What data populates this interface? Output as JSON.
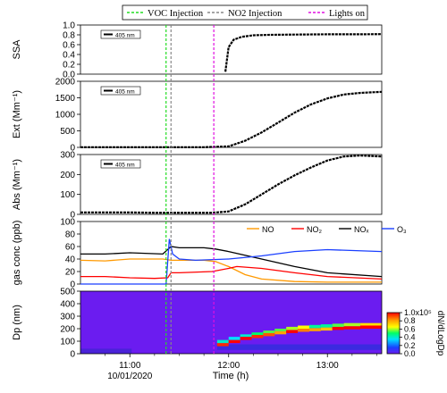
{
  "legend": {
    "entries": [
      {
        "label": "VOC Injection",
        "color": "#22dd22"
      },
      {
        "label": "NO2 Injection",
        "color": "#888888"
      },
      {
        "label": "Lights on",
        "color": "#e010e0"
      }
    ]
  },
  "x_axis": {
    "label": "Time (h)",
    "ticks": [
      "11:00",
      "12:00",
      "13:00"
    ],
    "date_label": "10/01/2020"
  },
  "chart_data": [
    {
      "type": "line",
      "ylabel": "SSA",
      "ylim": [
        0,
        1.0
      ],
      "y_ticks": [
        "0.0",
        "0.2",
        "0.4",
        "0.6",
        "0.8",
        "1.0"
      ],
      "legend_box": "405 nm",
      "series": [
        {
          "name": "405 nm",
          "color": "#000000",
          "x": [
            "11:58",
            "12:00",
            "12:03",
            "12:08",
            "12:15",
            "12:25",
            "12:40",
            "13:00",
            "13:20",
            "13:33"
          ],
          "y": [
            0.05,
            0.55,
            0.7,
            0.76,
            0.79,
            0.8,
            0.805,
            0.81,
            0.81,
            0.815
          ]
        }
      ]
    },
    {
      "type": "line",
      "ylabel": "Ext (Mm⁻¹)",
      "ylim": [
        0,
        2000
      ],
      "y_ticks": [
        "0",
        "500",
        "1000",
        "1500",
        "2000"
      ],
      "legend_box": "405 nm",
      "series": [
        {
          "name": "405 nm",
          "color": "#000000",
          "x": [
            "10:30",
            "11:00",
            "11:15",
            "11:45",
            "12:00",
            "12:10",
            "12:20",
            "12:30",
            "12:40",
            "12:50",
            "13:00",
            "13:10",
            "13:20",
            "13:33"
          ],
          "y": [
            5,
            5,
            5,
            5,
            30,
            200,
            450,
            750,
            1050,
            1300,
            1480,
            1600,
            1650,
            1680
          ]
        }
      ]
    },
    {
      "type": "line",
      "ylabel": "Abs (Mm⁻¹)",
      "ylim": [
        0,
        300
      ],
      "y_ticks": [
        "0",
        "100",
        "200",
        "300"
      ],
      "legend_box": "405 nm",
      "series": [
        {
          "name": "405 nm",
          "color": "#000000",
          "x": [
            "10:30",
            "11:00",
            "11:15",
            "11:50",
            "12:00",
            "12:10",
            "12:20",
            "12:30",
            "12:40",
            "12:50",
            "13:00",
            "13:10",
            "13:20",
            "13:33"
          ],
          "y": [
            10,
            10,
            8,
            8,
            15,
            50,
            100,
            150,
            195,
            235,
            270,
            290,
            295,
            290
          ]
        }
      ]
    },
    {
      "type": "line",
      "ylabel": "gas conc (ppb)",
      "ylim": [
        0,
        100
      ],
      "y_ticks": [
        "0",
        "20",
        "40",
        "60",
        "80",
        "100"
      ],
      "series": [
        {
          "name": "NO",
          "color": "#ff9900",
          "x": [
            "10:30",
            "10:45",
            "11:00",
            "11:20",
            "11:25",
            "11:30",
            "11:45",
            "11:52",
            "12:00",
            "12:10",
            "12:20",
            "12:40",
            "13:00",
            "13:33"
          ],
          "y": [
            38,
            37,
            40,
            40,
            38,
            38,
            38,
            36,
            28,
            15,
            8,
            4,
            3,
            3
          ]
        },
        {
          "name": "NO₂",
          "color": "#ff0000",
          "x": [
            "10:30",
            "10:45",
            "11:00",
            "11:15",
            "11:23",
            "11:25",
            "11:30",
            "11:50",
            "12:00",
            "12:05",
            "12:20",
            "12:40",
            "13:00",
            "13:33"
          ],
          "y": [
            12,
            12,
            10,
            9,
            10,
            18,
            18,
            20,
            25,
            28,
            25,
            18,
            12,
            8
          ]
        },
        {
          "name": "NOₓ",
          "color": "#000000",
          "x": [
            "10:30",
            "10:45",
            "11:00",
            "11:20",
            "11:25",
            "11:30",
            "11:45",
            "11:52",
            "12:00",
            "12:20",
            "12:40",
            "13:00",
            "13:33"
          ],
          "y": [
            48,
            48,
            50,
            48,
            60,
            58,
            58,
            56,
            52,
            40,
            28,
            18,
            12
          ]
        },
        {
          "name": "O₃",
          "color": "#1a3fff",
          "x": [
            "10:30",
            "11:00",
            "11:22",
            "11:24",
            "11:26",
            "11:30",
            "11:40",
            "12:00",
            "12:20",
            "12:40",
            "13:00",
            "13:33"
          ],
          "y": [
            0,
            0,
            0,
            72,
            48,
            40,
            38,
            40,
            45,
            52,
            55,
            52
          ]
        }
      ]
    },
    {
      "type": "heatmap",
      "ylabel": "Dp (nm)",
      "ylim": [
        0,
        500
      ],
      "y_ticks": [
        "0",
        "100",
        "200",
        "300",
        "400",
        "500"
      ],
      "colorbar_label": "dN/dLogDp",
      "colorbar_ticks": [
        "0.0",
        "0.2",
        "0.4",
        "0.6",
        "0.8",
        "1.0x10⁵"
      ],
      "zlim": [
        0,
        100000
      ],
      "cells": [
        {
          "x": [
            "11:53",
            "12:00"
          ],
          "y": [
            60,
            85
          ],
          "z": 95000
        },
        {
          "x": [
            "11:53",
            "12:00"
          ],
          "y": [
            85,
            110
          ],
          "z": 40000
        },
        {
          "x": [
            "12:00",
            "12:07"
          ],
          "y": [
            85,
            110
          ],
          "z": 100000
        },
        {
          "x": [
            "12:00",
            "12:07"
          ],
          "y": [
            110,
            135
          ],
          "z": 35000
        },
        {
          "x": [
            "12:07",
            "12:14"
          ],
          "y": [
            110,
            135
          ],
          "z": 100000
        },
        {
          "x": [
            "12:07",
            "12:14"
          ],
          "y": [
            135,
            155
          ],
          "z": 40000
        },
        {
          "x": [
            "12:14",
            "12:21"
          ],
          "y": [
            125,
            150
          ],
          "z": 95000
        },
        {
          "x": [
            "12:14",
            "12:21"
          ],
          "y": [
            150,
            170
          ],
          "z": 50000
        },
        {
          "x": [
            "12:21",
            "12:28"
          ],
          "y": [
            140,
            165
          ],
          "z": 90000
        },
        {
          "x": [
            "12:21",
            "12:28"
          ],
          "y": [
            165,
            185
          ],
          "z": 55000
        },
        {
          "x": [
            "12:28",
            "12:35"
          ],
          "y": [
            155,
            180
          ],
          "z": 80000
        },
        {
          "x": [
            "12:28",
            "12:35"
          ],
          "y": [
            180,
            200
          ],
          "z": 55000
        },
        {
          "x": [
            "12:35",
            "12:42"
          ],
          "y": [
            165,
            190
          ],
          "z": 100000
        },
        {
          "x": [
            "12:35",
            "12:42"
          ],
          "y": [
            190,
            215
          ],
          "z": 60000
        },
        {
          "x": [
            "12:42",
            "12:49"
          ],
          "y": [
            175,
            200
          ],
          "z": 85000
        },
        {
          "x": [
            "12:42",
            "12:49"
          ],
          "y": [
            200,
            225
          ],
          "z": 65000
        },
        {
          "x": [
            "12:49",
            "12:56"
          ],
          "y": [
            180,
            205
          ],
          "z": 80000
        },
        {
          "x": [
            "12:49",
            "12:56"
          ],
          "y": [
            205,
            230
          ],
          "z": 45000
        },
        {
          "x": [
            "12:56",
            "13:03"
          ],
          "y": [
            185,
            210
          ],
          "z": 75000
        },
        {
          "x": [
            "12:56",
            "13:03"
          ],
          "y": [
            210,
            235
          ],
          "z": 45000
        },
        {
          "x": [
            "13:03",
            "13:10"
          ],
          "y": [
            190,
            215
          ],
          "z": 100000
        },
        {
          "x": [
            "13:03",
            "13:10"
          ],
          "y": [
            215,
            240
          ],
          "z": 55000
        },
        {
          "x": [
            "13:10",
            "13:20"
          ],
          "y": [
            195,
            220
          ],
          "z": 100000
        },
        {
          "x": [
            "13:10",
            "13:20"
          ],
          "y": [
            220,
            245
          ],
          "z": 60000
        },
        {
          "x": [
            "13:20",
            "13:33"
          ],
          "y": [
            200,
            225
          ],
          "z": 100000
        },
        {
          "x": [
            "13:20",
            "13:33"
          ],
          "y": [
            225,
            245
          ],
          "z": 70000
        }
      ]
    }
  ],
  "markers": [
    {
      "label": "VOC Injection",
      "time": "11:22",
      "color": "#22dd22"
    },
    {
      "label": "NO2 Injection",
      "time": "11:25",
      "color": "#888888"
    },
    {
      "label": "Lights on",
      "time": "11:51",
      "color": "#e010e0"
    }
  ],
  "x_range": [
    "10:30",
    "13:33"
  ]
}
